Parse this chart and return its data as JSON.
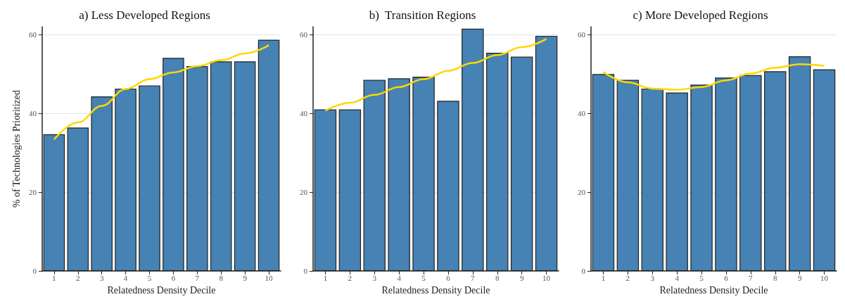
{
  "chart_data": [
    {
      "type": "bar",
      "title": "a) Less Developed Regions",
      "xlabel": "Relatedness Density Decile",
      "ylabel": "% of Technologies Prioritized",
      "categories": [
        "1",
        "2",
        "3",
        "4",
        "5",
        "6",
        "7",
        "8",
        "9",
        "10"
      ],
      "ylim": [
        0,
        62
      ],
      "yticks": [
        0,
        20,
        40,
        60
      ],
      "grid": "y",
      "series": [
        {
          "color": "#4682b4",
          "values": [
            34.7,
            36.4,
            44.3,
            46.3,
            47.1,
            54.1,
            52.0,
            53.2,
            53.2,
            58.7
          ]
        },
        {
          "type": "line",
          "color": "#ffd700",
          "marker": "none",
          "x": [
            "1",
            "2",
            "3",
            "4",
            "5",
            "6",
            "7",
            "8",
            "9",
            "10"
          ],
          "values": [
            33.4,
            37.7,
            41.9,
            46.2,
            48.7,
            50.4,
            52.0,
            53.5,
            55.2,
            57.3
          ]
        }
      ]
    },
    {
      "type": "bar",
      "title": "b)  Transition Regions",
      "xlabel": "Relatedness Density Decile",
      "categories": [
        "1",
        "2",
        "3",
        "4",
        "5",
        "6",
        "7",
        "8",
        "9",
        "10"
      ],
      "ylim": [
        0,
        62
      ],
      "yticks": [
        0,
        20,
        40,
        60
      ],
      "grid": "y",
      "series": [
        {
          "color": "#4682b4",
          "values": [
            41.0,
            41.0,
            48.5,
            48.9,
            49.3,
            43.2,
            61.5,
            55.4,
            54.4,
            59.7
          ]
        },
        {
          "type": "line",
          "color": "#ffd700",
          "marker": "none",
          "x": [
            "1",
            "2",
            "3",
            "4",
            "5",
            "6",
            "7",
            "8",
            "9",
            "10"
          ],
          "values": [
            40.7,
            42.7,
            44.7,
            46.7,
            48.7,
            50.8,
            52.8,
            54.8,
            56.8,
            58.9
          ]
        }
      ]
    },
    {
      "type": "bar",
      "title": "c) More Developed Regions",
      "xlabel": "Relatedness Density Decile",
      "categories": [
        "1",
        "2",
        "3",
        "4",
        "5",
        "6",
        "7",
        "8",
        "9",
        "10"
      ],
      "ylim": [
        0,
        62
      ],
      "yticks": [
        0,
        20,
        40,
        60
      ],
      "grid": "y",
      "series": [
        {
          "color": "#4682b4",
          "values": [
            50.0,
            48.5,
            46.3,
            45.3,
            47.3,
            49.1,
            49.7,
            50.7,
            54.5,
            51.2
          ]
        },
        {
          "type": "line",
          "color": "#ffd700",
          "marker": "none",
          "x": [
            "1",
            "2",
            "3",
            "4",
            "5",
            "6",
            "7",
            "8",
            "9",
            "10"
          ],
          "values": [
            50.5,
            47.9,
            46.3,
            46.0,
            46.7,
            48.4,
            50.1,
            51.6,
            52.5,
            52.1
          ]
        }
      ]
    }
  ]
}
